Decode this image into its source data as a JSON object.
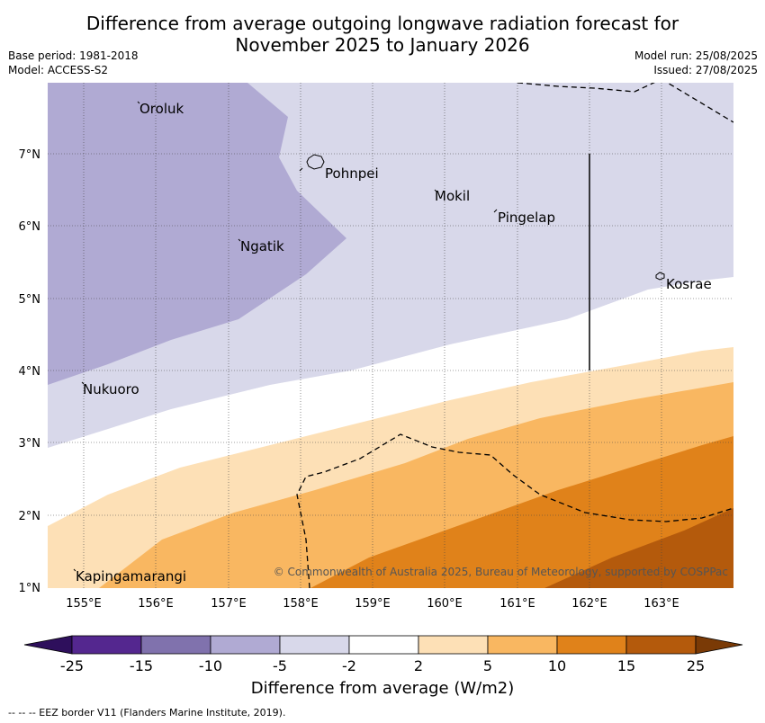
{
  "header": {
    "title_line1": "Difference from average outgoing longwave radiation forecast for",
    "title_line2": "November 2025 to January 2026",
    "base_period": "Base period: 1981-2018",
    "model": "Model: ACCESS-S2",
    "model_run": "Model run: 25/08/2025",
    "issued": "Issued: 27/08/2025"
  },
  "map": {
    "lon_ticks": [
      "155°E",
      "156°E",
      "157°E",
      "158°E",
      "159°E",
      "160°E",
      "161°E",
      "162°E",
      "163°E"
    ],
    "lat_ticks": [
      "7°N",
      "6°N",
      "5°N",
      "4°N",
      "3°N",
      "2°N",
      "1°N"
    ],
    "places": [
      "Oroluk",
      "Pohnpei",
      "Mokil",
      "Pingelap",
      "Ngatik",
      "Kosrae",
      "Nukuoro",
      "Kapingamarangi"
    ],
    "copyright": "© Commonwealth of Australia 2025, Bureau of Meteorology, supported by COSPPac"
  },
  "colorbar": {
    "labels": [
      "-25",
      "-15",
      "-10",
      "-5",
      "-2",
      "2",
      "5",
      "10",
      "15",
      "25"
    ],
    "colors": [
      "#2e0f5c",
      "#54278f",
      "#8072ad",
      "#b0aad3",
      "#d8d8ea",
      "#ffffff",
      "#fde0b6",
      "#f9b761",
      "#e0821a",
      "#b45a0c",
      "#7a3a06"
    ],
    "title": "Difference from average (W/m2)"
  },
  "footnote": "--  --  -- EEZ border V11 (Flanders Marine Institute, 2019)."
}
